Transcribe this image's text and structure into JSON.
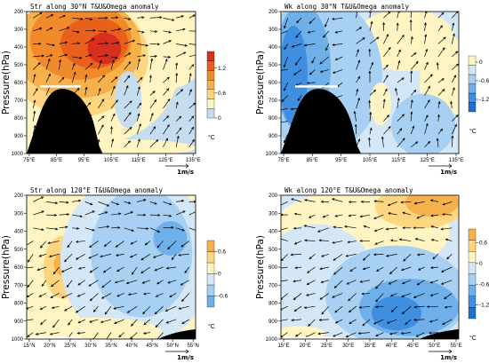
{
  "chart_data": [
    {
      "type": "heatmap",
      "title": "Str along 30°N T&U&Omega anomaly",
      "ylabel": "Pressure(hPa)",
      "x_tick_labels": [
        "75°E",
        "85°E",
        "95°E",
        "105°E",
        "115°E",
        "125°E",
        "135°E"
      ],
      "x_range": [
        75,
        135
      ],
      "y_tick_labels": [
        "200",
        "300",
        "400",
        "500",
        "600",
        "700",
        "800",
        "900",
        "1000"
      ],
      "y_range": [
        200,
        1000
      ],
      "colorbar": {
        "ticks": [
          "1.2",
          "0.6",
          "0"
        ],
        "range": [
          0,
          1.6
        ],
        "unit": "°C",
        "colors": [
          "#c6dcef",
          "#fff4c2",
          "#ffd580",
          "#f7b14b",
          "#f08a2b",
          "#e8601c",
          "#d7301f"
        ]
      },
      "vector_reference": "1m/s",
      "topography": "black"
    },
    {
      "type": "heatmap",
      "title": "Wk along 30°N T&U&Omega anomaly",
      "ylabel": "Pressure(hPa)",
      "x_tick_labels": [
        "75°E",
        "85°E",
        "95°E",
        "105°E",
        "115°E",
        "125°E",
        "135°E"
      ],
      "x_range": [
        75,
        135
      ],
      "y_tick_labels": [
        "200",
        "300",
        "400",
        "500",
        "600",
        "700",
        "800",
        "900",
        "1000"
      ],
      "y_range": [
        200,
        1000
      ],
      "colorbar": {
        "ticks": [
          "0",
          "-0.6",
          "-1.2"
        ],
        "range": [
          -1.6,
          0.2
        ],
        "unit": "°C",
        "colors": [
          "#1f6fd1",
          "#3f8ee0",
          "#6fb0eb",
          "#a7d0f2",
          "#d3e7f7",
          "#fff4c2"
        ]
      },
      "vector_reference": "1m/s",
      "topography": "black"
    },
    {
      "type": "heatmap",
      "title": "Str along 120°E T&U&Omega anomaly",
      "ylabel": "Pressure(hPa)",
      "x_tick_labels": [
        "15°N",
        "20°N",
        "25°N",
        "30°N",
        "35°N",
        "40°N",
        "45°N",
        "50°N",
        "55°N"
      ],
      "x_range": [
        15,
        55
      ],
      "y_tick_labels": [
        "200",
        "300",
        "400",
        "500",
        "600",
        "700",
        "800",
        "900",
        "1000"
      ],
      "y_range": [
        200,
        1000
      ],
      "colorbar": {
        "ticks": [
          "0.6",
          "0",
          "-0.6"
        ],
        "range": [
          -0.9,
          0.9
        ],
        "unit": "°C",
        "colors": [
          "#6fb0eb",
          "#a7d0f2",
          "#d3e7f7",
          "#fff4c2",
          "#ffd580",
          "#f7b14b"
        ]
      },
      "vector_reference": "1m/s",
      "topography": "black"
    },
    {
      "type": "heatmap",
      "title": "Wk along 120°E T&U&Omega anomaly",
      "ylabel": "Pressure(hPa)",
      "x_tick_labels": [
        "15°E",
        "20°E",
        "25°E",
        "30°E",
        "35°E",
        "40°E",
        "45°E",
        "50°E",
        "55°E"
      ],
      "x_range": [
        15,
        55
      ],
      "y_tick_labels": [
        "200",
        "300",
        "400",
        "500",
        "600",
        "700",
        "800",
        "900",
        "1000"
      ],
      "y_range": [
        200,
        1000
      ],
      "colorbar": {
        "ticks": [
          "0.6",
          "0",
          "-0.6",
          "-1.2"
        ],
        "range": [
          -1.6,
          1.0
        ],
        "unit": "°C",
        "colors": [
          "#1f6fd1",
          "#3f8ee0",
          "#6fb0eb",
          "#a7d0f2",
          "#d3e7f7",
          "#fff4c2",
          "#ffd580",
          "#f7b14b"
        ]
      },
      "vector_reference": "1m/s",
      "topography": "black"
    }
  ]
}
